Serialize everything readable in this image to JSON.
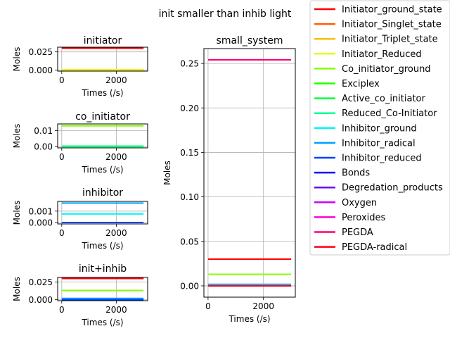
{
  "figure": {
    "suptitle": "init smaller than inhib light"
  },
  "legend": {
    "placement": "right",
    "entries": [
      {
        "name": "Initiator_ground_state",
        "color": "#ff0000"
      },
      {
        "name": "Initiator_Singlet_state",
        "color": "#ff5e00"
      },
      {
        "name": "Initiator_Triplet_state",
        "color": "#ffbd00"
      },
      {
        "name": "Initiator_Reduced",
        "color": "#e3ff00"
      },
      {
        "name": "Co_initiator_ground",
        "color": "#84ff00"
      },
      {
        "name": "Exciplex",
        "color": "#26ff00"
      },
      {
        "name": "Active_co_initiator",
        "color": "#00ff3a"
      },
      {
        "name": "Reduced_Co-Initiator",
        "color": "#00ff99"
      },
      {
        "name": "Inhibitor_ground",
        "color": "#00f6ff"
      },
      {
        "name": "Inhibitor_radical",
        "color": "#00a0ff"
      },
      {
        "name": "Inhibitor_reduced",
        "color": "#0040ff"
      },
      {
        "name": "Bonds",
        "color": "#0e00ff"
      },
      {
        "name": "Degredation_products",
        "color": "#6c00ff"
      },
      {
        "name": "Oxygen",
        "color": "#cb00ff"
      },
      {
        "name": "Peroxides",
        "color": "#ff00d4"
      },
      {
        "name": "PEGDA",
        "color": "#ff0074"
      },
      {
        "name": "PEGDA-radical",
        "color": "#ff0015"
      }
    ]
  },
  "chart_data": [
    {
      "type": "line",
      "title": "initiator",
      "xlabel": "Times (/s)",
      "ylabel": "Moles",
      "xlim": [
        -150,
        3150
      ],
      "ylim": [
        -0.0015,
        0.0315
      ],
      "xticks": [
        "0",
        "2000"
      ],
      "xtick_values": [
        0,
        2000
      ],
      "yticks": [
        "0.000",
        "0.025"
      ],
      "ytick_values": [
        0,
        0.025
      ],
      "grid": true,
      "series": [
        {
          "name": "Initiator_ground_state",
          "x": [
            0,
            3000
          ],
          "y": [
            0.03,
            0.03
          ]
        },
        {
          "name": "Initiator_Singlet_state",
          "x": [
            0,
            3000
          ],
          "y": [
            0.0,
            0.0
          ]
        },
        {
          "name": "Initiator_Triplet_state",
          "x": [
            0,
            3000
          ],
          "y": [
            0.0,
            0.0
          ]
        },
        {
          "name": "Initiator_Reduced",
          "x": [
            0,
            3000
          ],
          "y": [
            0.0005,
            0.0005
          ]
        }
      ]
    },
    {
      "type": "line",
      "title": "co_initiator",
      "xlabel": "Times (/s)",
      "ylabel": "Moles",
      "xlim": [
        -150,
        3150
      ],
      "ylim": [
        -0.0008,
        0.0142
      ],
      "xticks": [
        "0",
        "2000"
      ],
      "xtick_values": [
        0,
        2000
      ],
      "yticks": [
        "0.00",
        "0.01"
      ],
      "ytick_values": [
        0,
        0.01
      ],
      "grid": true,
      "series": [
        {
          "name": "Co_initiator_ground",
          "x": [
            0,
            3000
          ],
          "y": [
            0.013,
            0.013
          ]
        },
        {
          "name": "Exciplex",
          "x": [
            0,
            3000
          ],
          "y": [
            0.0,
            0.0
          ]
        },
        {
          "name": "Active_co_initiator",
          "x": [
            0,
            3000
          ],
          "y": [
            0.0,
            0.0
          ]
        },
        {
          "name": "Reduced_Co-Initiator",
          "x": [
            0,
            3000
          ],
          "y": [
            0.0003,
            0.0003
          ]
        }
      ]
    },
    {
      "type": "line",
      "title": "inhibitor",
      "xlabel": "Times (/s)",
      "ylabel": "Moles",
      "xlim": [
        -150,
        3150
      ],
      "ylim": [
        -0.00012,
        0.00185
      ],
      "xticks": [
        "0",
        "2000"
      ],
      "xtick_values": [
        0,
        2000
      ],
      "yticks": [
        "0.000",
        "0.001"
      ],
      "ytick_values": [
        0,
        0.001
      ],
      "grid": true,
      "series": [
        {
          "name": "Inhibitor_ground",
          "x": [
            0,
            3000
          ],
          "y": [
            0.00075,
            0.00075
          ]
        },
        {
          "name": "Inhibitor_radical",
          "x": [
            0,
            3000
          ],
          "y": [
            0.0017,
            0.0017
          ]
        },
        {
          "name": "Inhibitor_reduced",
          "x": [
            0,
            3000
          ],
          "y": [
            0.0,
            0.0
          ]
        }
      ]
    },
    {
      "type": "line",
      "title": "init+inhib",
      "xlabel": "Times (/s)",
      "ylabel": "Moles",
      "xlim": [
        -150,
        3150
      ],
      "ylim": [
        -0.0015,
        0.0315
      ],
      "xticks": [
        "0",
        "2000"
      ],
      "xtick_values": [
        0,
        2000
      ],
      "yticks": [
        "0.000",
        "0.025"
      ],
      "ytick_values": [
        0,
        0.025
      ],
      "grid": true,
      "series": [
        {
          "name": "Initiator_ground_state",
          "x": [
            0,
            3000
          ],
          "y": [
            0.03,
            0.03
          ]
        },
        {
          "name": "Co_initiator_ground",
          "x": [
            0,
            3000
          ],
          "y": [
            0.013,
            0.013
          ]
        },
        {
          "name": "Inhibitor_ground",
          "x": [
            0,
            3000
          ],
          "y": [
            0.0008,
            0.0008
          ]
        },
        {
          "name": "Inhibitor_radical",
          "x": [
            0,
            3000
          ],
          "y": [
            0.0017,
            0.0017
          ]
        },
        {
          "name": "Inhibitor_reduced",
          "x": [
            0,
            3000
          ],
          "y": [
            0.0,
            0.0
          ]
        }
      ]
    },
    {
      "type": "line",
      "title": "small_system",
      "xlabel": "Times (/s)",
      "ylabel": "Moles",
      "xlim": [
        -150,
        3150
      ],
      "ylim": [
        -0.0127,
        0.2667
      ],
      "xticks": [
        "0",
        "2000"
      ],
      "xtick_values": [
        0,
        2000
      ],
      "yticks": [
        "0.00",
        "0.05",
        "0.10",
        "0.15",
        "0.20",
        "0.25"
      ],
      "ytick_values": [
        0,
        0.05,
        0.1,
        0.15,
        0.2,
        0.25
      ],
      "grid": true,
      "series": [
        {
          "name": "Initiator_ground_state",
          "x": [
            0,
            3000
          ],
          "y": [
            0.03,
            0.03
          ]
        },
        {
          "name": "Co_initiator_ground",
          "x": [
            0,
            3000
          ],
          "y": [
            0.013,
            0.013
          ]
        },
        {
          "name": "Inhibitor_radical",
          "x": [
            0,
            3000
          ],
          "y": [
            0.0017,
            0.0017
          ]
        },
        {
          "name": "Inhibitor_reduced",
          "x": [
            0,
            3000
          ],
          "y": [
            0.0,
            0.0
          ]
        },
        {
          "name": "PEGDA-radical",
          "x": [
            0,
            3000
          ],
          "y": [
            0.0,
            0.0
          ]
        },
        {
          "name": "PEGDA",
          "x": [
            0,
            3000
          ],
          "y": [
            0.254,
            0.254
          ]
        }
      ]
    }
  ]
}
